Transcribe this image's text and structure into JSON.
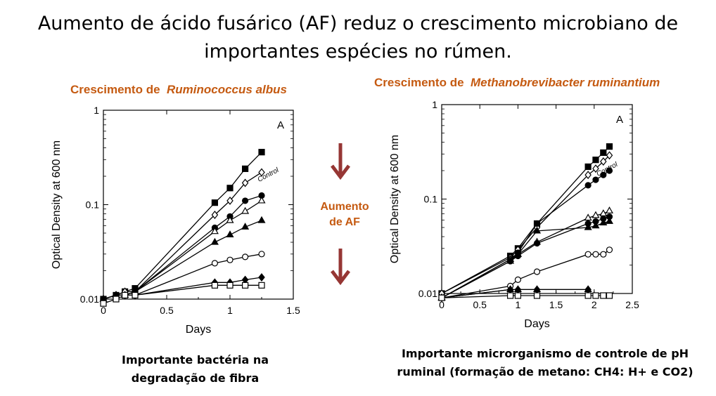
{
  "slide": {
    "title_line1": "Aumento de ácido fusárico (AF) reduz o crescimento microbiano de",
    "title_line2": "importantes espécies no rúmen.",
    "middle_label_line1": "Aumento",
    "middle_label_line2": "de AF",
    "arrow_color": "#963634",
    "accent_color": "#c55a11"
  },
  "left_panel": {
    "title_prefix": "Crescimento de",
    "title_species": "Ruminococcus albus",
    "caption_line1": "Importante bactéria na",
    "caption_line2": "degradação de fibra"
  },
  "right_panel": {
    "title_prefix": "Crescimento de",
    "title_species": "Methanobrevibacter ruminantium",
    "caption_line1": "Importante microrganismo de controle de pH",
    "caption_line2": "ruminal (formação de metano: CH4: H+ e CO2)"
  },
  "chart_data": [
    {
      "type": "line",
      "scale_y": "log",
      "panel_letter": "A",
      "xlabel": "Days",
      "ylabel": "Optical Density at 600 nm",
      "annotation": "Control",
      "xlim": [
        0,
        1.5
      ],
      "ylim": [
        0.01,
        1
      ],
      "xticks": [
        "0",
        "0.5",
        "1",
        "1.5"
      ],
      "yticks": [
        "0.01",
        "0.1",
        "1"
      ],
      "series": [
        {
          "marker": "square-filled",
          "x": [
            0,
            0.1,
            0.17,
            0.25,
            0.88,
            1.0,
            1.12,
            1.25
          ],
          "y": [
            0.01,
            0.011,
            0.012,
            0.013,
            0.105,
            0.15,
            0.24,
            0.36
          ]
        },
        {
          "marker": "diamond-open",
          "x": [
            0,
            0.1,
            0.17,
            0.25,
            0.88,
            1.0,
            1.12,
            1.25
          ],
          "y": [
            0.01,
            0.011,
            0.012,
            0.012,
            0.078,
            0.11,
            0.17,
            0.22
          ]
        },
        {
          "marker": "circle-filled",
          "x": [
            0,
            0.1,
            0.17,
            0.25,
            0.88,
            1.0,
            1.12,
            1.25
          ],
          "y": [
            0.01,
            0.011,
            0.011,
            0.012,
            0.057,
            0.075,
            0.11,
            0.125
          ]
        },
        {
          "marker": "triangle-open",
          "x": [
            0,
            0.1,
            0.17,
            0.25,
            0.88,
            1.0,
            1.12,
            1.25
          ],
          "y": [
            0.01,
            0.011,
            0.011,
            0.012,
            0.052,
            0.068,
            0.085,
            0.11
          ]
        },
        {
          "marker": "triangle-filled",
          "x": [
            0,
            0.1,
            0.17,
            0.25,
            0.88,
            1.0,
            1.12,
            1.25
          ],
          "y": [
            0.01,
            0.011,
            0.011,
            0.012,
            0.04,
            0.048,
            0.058,
            0.068
          ]
        },
        {
          "marker": "circle-open",
          "x": [
            0,
            0.1,
            0.17,
            0.25,
            0.88,
            1.0,
            1.12,
            1.25
          ],
          "y": [
            0.01,
            0.011,
            0.011,
            0.011,
            0.024,
            0.026,
            0.028,
            0.03
          ]
        },
        {
          "marker": "diamond-filled",
          "x": [
            0,
            0.1,
            0.17,
            0.25,
            0.88,
            1.0,
            1.12,
            1.25
          ],
          "y": [
            0.01,
            0.011,
            0.011,
            0.011,
            0.015,
            0.015,
            0.016,
            0.017
          ]
        },
        {
          "marker": "square-open",
          "x": [
            0,
            0.1,
            0.17,
            0.25,
            0.88,
            1.0,
            1.12,
            1.25
          ],
          "y": [
            0.009,
            0.01,
            0.011,
            0.011,
            0.014,
            0.014,
            0.014,
            0.014
          ]
        }
      ]
    },
    {
      "type": "line",
      "scale_y": "log",
      "panel_letter": "A",
      "xlabel": "Days",
      "ylabel": "Optical Density at 600 nm",
      "annotation": "Control",
      "xlim": [
        0,
        2.5
      ],
      "ylim": [
        0.01,
        1
      ],
      "xticks": [
        "0",
        "0.5",
        "1",
        "1.5",
        "2",
        "2.5"
      ],
      "yticks": [
        "0.01",
        "0.1",
        "1"
      ],
      "series": [
        {
          "marker": "square-filled",
          "x": [
            0,
            0.9,
            1.0,
            1.25,
            1.92,
            2.02,
            2.12,
            2.2
          ],
          "y": [
            0.01,
            0.025,
            0.03,
            0.055,
            0.22,
            0.26,
            0.31,
            0.36
          ]
        },
        {
          "marker": "diamond-open",
          "x": [
            0,
            0.9,
            1.0,
            1.25,
            1.92,
            2.02,
            2.12,
            2.2
          ],
          "y": [
            0.01,
            0.024,
            0.029,
            0.05,
            0.18,
            0.21,
            0.25,
            0.29
          ]
        },
        {
          "marker": "circle-filled",
          "x": [
            0,
            0.9,
            1.0,
            1.25,
            1.92,
            2.02,
            2.12,
            2.2
          ],
          "y": [
            0.009,
            0.023,
            0.027,
            0.055,
            0.14,
            0.16,
            0.18,
            0.2
          ]
        },
        {
          "marker": "triangle-open",
          "x": [
            0,
            0.9,
            1.0,
            1.25,
            1.92,
            2.02,
            2.12,
            2.2
          ],
          "y": [
            0.009,
            0.023,
            0.026,
            0.035,
            0.063,
            0.067,
            0.07,
            0.075
          ]
        },
        {
          "marker": "circle-filled",
          "x": [
            0,
            0.9,
            1.0,
            1.25,
            1.92,
            2.02,
            2.12,
            2.2
          ],
          "y": [
            0.009,
            0.022,
            0.025,
            0.034,
            0.055,
            0.058,
            0.062,
            0.065
          ]
        },
        {
          "marker": "triangle-filled",
          "x": [
            0,
            0.9,
            1.0,
            1.25,
            1.92,
            2.02,
            2.12,
            2.2
          ],
          "y": [
            0.009,
            0.022,
            0.026,
            0.046,
            0.05,
            0.052,
            0.056,
            0.058
          ]
        },
        {
          "marker": "circle-open",
          "x": [
            0,
            0.9,
            1.0,
            1.25,
            1.92,
            2.02,
            2.12,
            2.2
          ],
          "y": [
            0.009,
            0.012,
            0.014,
            0.017,
            0.026,
            0.026,
            0.026,
            0.029
          ]
        },
        {
          "marker": "triangle-filled",
          "x": [
            0,
            0.9,
            1.0,
            1.25,
            1.92
          ],
          "y": [
            0.009,
            0.011,
            0.011,
            0.011,
            0.011
          ]
        },
        {
          "marker": "diamond-filled",
          "x": [
            0,
            0.9,
            1.0,
            1.25,
            1.92
          ],
          "y": [
            0.009,
            0.011,
            0.011,
            0.011,
            0.011
          ]
        },
        {
          "marker": "square-open",
          "x": [
            0,
            0.9,
            1.0,
            1.25,
            1.92,
            2.02,
            2.12,
            2.2
          ],
          "y": [
            0.009,
            0.0095,
            0.0095,
            0.0095,
            0.0095,
            0.0095,
            0.0095,
            0.0095
          ]
        }
      ]
    }
  ]
}
